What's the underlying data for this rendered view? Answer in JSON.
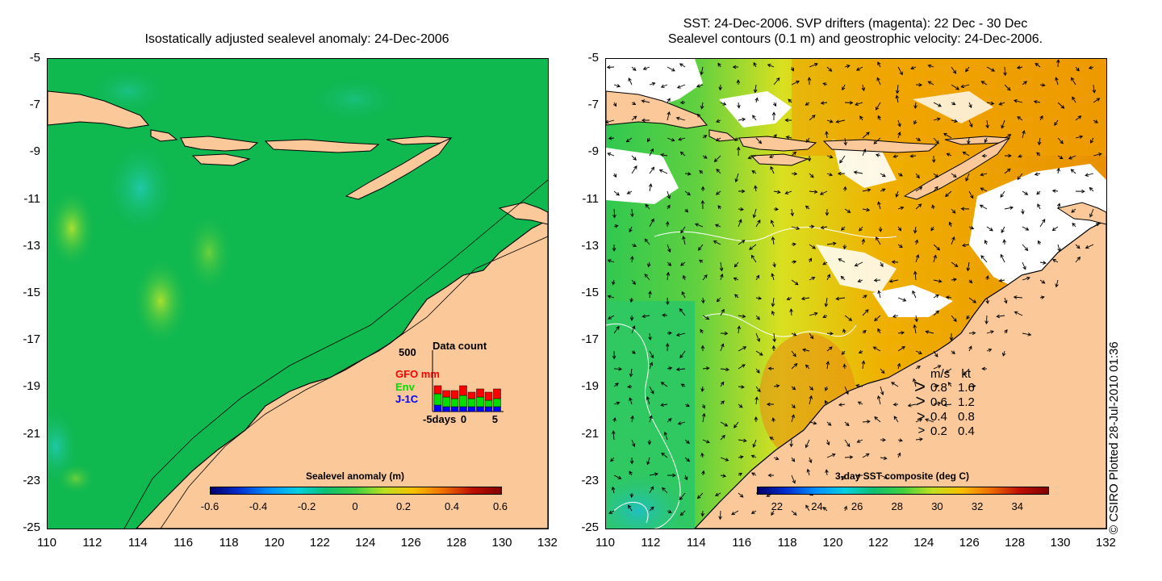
{
  "left_panel": {
    "title": "Isostatically adjusted sealevel anomaly: 24-Dec-2006",
    "y_ticks": [
      "-5",
      "-7",
      "-9",
      "-11",
      "-13",
      "-15",
      "-17",
      "-19",
      "-21",
      "-23",
      "-25"
    ],
    "x_ticks": [
      "110",
      "112",
      "114",
      "116",
      "118",
      "120",
      "122",
      "124",
      "126",
      "128",
      "130",
      "132"
    ],
    "colorbar": {
      "title": "Sealevel anomaly (m)",
      "ticks": [
        "-0.6",
        "-0.4",
        "-0.2",
        "0",
        "0.2",
        "0.4",
        "0.6"
      ],
      "range": [
        -0.6,
        0.6
      ]
    },
    "data_count": {
      "title": "Data count",
      "max_label": "500",
      "labels": {
        "gfo": "GFO mm",
        "env": "Env",
        "j1c": "J-1C"
      },
      "x_ticks": [
        "-5days",
        "0",
        "5"
      ],
      "colors": {
        "gfo": "#ff0000",
        "env": "#00dd00",
        "j1c": "#0000ff"
      }
    }
  },
  "right_panel": {
    "title_line1": "SST: 24-Dec-2006. SVP drifters (magenta): 22 Dec - 30 Dec",
    "title_line2": "Sealevel contours (0.1 m) and geostrophic velocity: 24-Dec-2006.",
    "y_ticks": [
      "-5",
      "-7",
      "-9",
      "-11",
      "-13",
      "-15",
      "-17",
      "-19",
      "-21",
      "-23",
      "-25"
    ],
    "x_ticks": [
      "110",
      "112",
      "114",
      "116",
      "118",
      "120",
      "122",
      "124",
      "126",
      "128",
      "130",
      "132"
    ],
    "colorbar": {
      "title": "3-day SST composite (deg C)",
      "ticks": [
        "22",
        "24",
        "26",
        "28",
        "30",
        "32",
        "34"
      ],
      "range": [
        21,
        35.5
      ]
    },
    "velocity_legend": {
      "header_ms": "m/s",
      "header_kt": "kt",
      "rows": [
        {
          "ms": "0.8",
          "kt": "1.6"
        },
        {
          "ms": "0.6",
          "kt": "1.2"
        },
        {
          "ms": "0.4",
          "kt": "0.8"
        },
        {
          "ms": "0.2",
          "kt": "0.4"
        }
      ]
    }
  },
  "credit": "© CSIRO Plotted 28-Jul-2010 01:36",
  "colors": {
    "land": "#fbc899",
    "ocean_left": "#10b850",
    "cloud": "#ffffff"
  }
}
